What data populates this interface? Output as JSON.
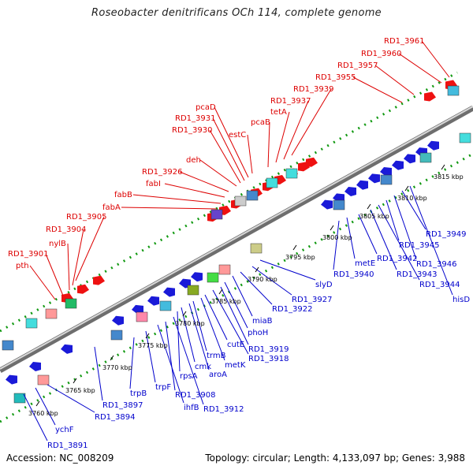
{
  "title": "Roseobacter denitrificans OCh 114, complete genome",
  "footer": {
    "accession": "Accession: NC_008209",
    "topology": "Topology: circular; Length: 4,133,097 bp; Genes: 3,988"
  },
  "colors": {
    "forward_gene": "#ee1111",
    "reverse_gene": "#1a1ad8",
    "backbone": "#999999",
    "tick": "#119911",
    "red_label": "#dd0000",
    "blue_label": "#0000cc"
  },
  "kbp_ticks": [
    "3760 kbp",
    "3765 kbp",
    "3770 kbp",
    "3775 kbp",
    "3780 kbp",
    "3785 kbp",
    "3790 kbp",
    "3795 kbp",
    "3800 kbp",
    "3805 kbp",
    "3810 kbp",
    "3815 kbp"
  ],
  "forward_labels": [
    "pth",
    "RD1_3901",
    "nylB",
    "RD1_3904",
    "RD1_3905",
    "fabA",
    "fabB",
    "fabI",
    "RD1_3926",
    "deh",
    "RD1_3930",
    "RD1_3931",
    "pcaD",
    "estC",
    "pcaB",
    "tetA",
    "RD1_3937",
    "RD1_3939",
    "RD1_3955",
    "RD1_3957",
    "RD1_3960",
    "RD1_3961"
  ],
  "reverse_labels": [
    "RD1_3891",
    "ychF",
    "RD1_3894",
    "RD1_3897",
    "trpB",
    "trpF",
    "ihfB",
    "RD1_3908",
    "RD1_3912",
    "rpsA",
    "cmk",
    "aroA",
    "trmB",
    "metK",
    "cutE",
    "RD1_3918",
    "RD1_3919",
    "phoH",
    "miaB",
    "RD1_3922",
    "RD1_3927",
    "slyD",
    "RD1_3940",
    "metE",
    "RD1_3942",
    "RD1_3943",
    "RD1_3944",
    "RD1_3945",
    "RD1_3946",
    "RD1_3949",
    "hisD"
  ]
}
